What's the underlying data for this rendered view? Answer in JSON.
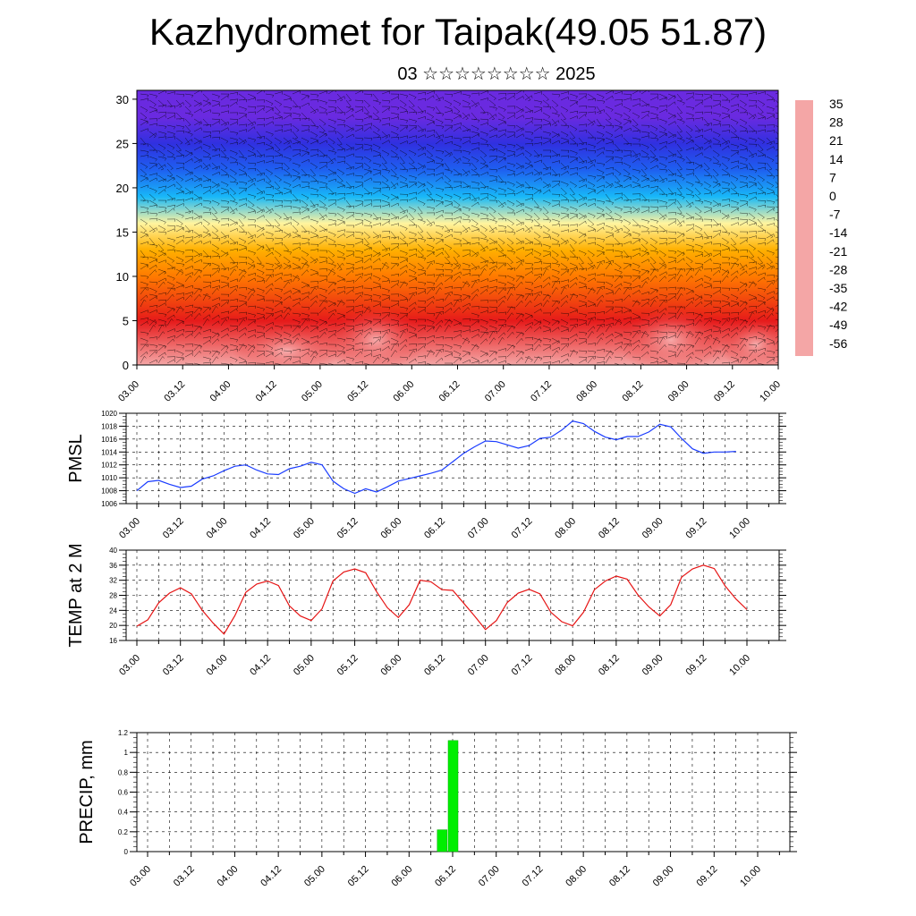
{
  "header": {
    "title": "Kazhydromet for Taipak(49.05 51.87)",
    "subtitle": "03 ☆☆☆☆☆☆☆☆ 2025"
  },
  "chart_data": [
    {
      "type": "heatmap",
      "title": "",
      "xlabel": "",
      "ylabel": "",
      "x_ticks": [
        "03.00",
        "03.12",
        "04.00",
        "04.12",
        "05.00",
        "05.12",
        "06.00",
        "06.12",
        "07.00",
        "07.12",
        "08.00",
        "08.12",
        "09.00",
        "09.12",
        "10.00"
      ],
      "y_ticks": [
        0,
        5,
        10,
        15,
        20,
        25,
        30
      ],
      "ylim": [
        0,
        31
      ],
      "colorbar_ticks": [
        35,
        28,
        21,
        14,
        7,
        0,
        -7,
        -14,
        -21,
        -28,
        -35,
        -42,
        -49,
        -56
      ],
      "colorbar_colors": [
        "#f4a6a6",
        "#e61a1a",
        "#ff3c00",
        "#ff7a00",
        "#ffb000",
        "#ffe070",
        "#fff4a0",
        "#a8e8ff",
        "#18b8f8",
        "#1f8ae6",
        "#2040ee",
        "#3030e0",
        "#5020e0",
        "#8030e0"
      ],
      "overlay": "wind barbs",
      "level_temperature": [
        {
          "level": 0,
          "value": 30
        },
        {
          "level": 5,
          "value": 22
        },
        {
          "level": 10,
          "value": 8
        },
        {
          "level": 13,
          "value": 0
        },
        {
          "level": 16,
          "value": -10
        },
        {
          "level": 19,
          "value": -22
        },
        {
          "level": 22,
          "value": -38
        },
        {
          "level": 25,
          "value": -50
        },
        {
          "level": 28,
          "value": -58
        },
        {
          "level": 31,
          "value": -60
        }
      ]
    },
    {
      "type": "line",
      "ylabel": "PMSL",
      "ylim": [
        1006,
        1020
      ],
      "y_ticks": [
        1006,
        1008,
        1010,
        1012,
        1014,
        1016,
        1018,
        1020
      ],
      "x_ticks": [
        "03.00",
        "03.12",
        "04.00",
        "04.12",
        "05.00",
        "05.12",
        "06.00",
        "06.12",
        "07.00",
        "07.12",
        "08.00",
        "08.12",
        "09.00",
        "09.12",
        "10.00"
      ],
      "x_start": 0,
      "x_step": 3,
      "color": "#1a3cff",
      "values": [
        1008.0,
        1009.4,
        1009.6,
        1009.0,
        1008.5,
        1008.7,
        1009.8,
        1010.3,
        1011.1,
        1011.8,
        1012.0,
        1011.2,
        1010.6,
        1010.5,
        1011.4,
        1011.8,
        1012.4,
        1012.0,
        1009.5,
        1008.3,
        1007.6,
        1008.3,
        1007.8,
        1008.6,
        1009.5,
        1009.9,
        1010.3,
        1010.7,
        1011.2,
        1012.5,
        1013.8,
        1014.8,
        1015.7,
        1015.6,
        1015.1,
        1014.6,
        1015.0,
        1016.1,
        1016.3,
        1017.4,
        1018.8,
        1018.4,
        1017.2,
        1016.3,
        1015.9,
        1016.4,
        1016.4,
        1017.1,
        1018.3,
        1017.9,
        1016.1,
        1014.5,
        1013.8,
        1014.0,
        1014.0,
        1014.1
      ]
    },
    {
      "type": "line",
      "ylabel": "TEMP at 2 M",
      "ylim": [
        16,
        40
      ],
      "y_ticks": [
        16,
        20,
        24,
        28,
        32,
        36,
        40
      ],
      "x_ticks": [
        "03.00",
        "03.12",
        "04.00",
        "04.12",
        "05.00",
        "05.12",
        "06.00",
        "06.12",
        "07.00",
        "07.12",
        "08.00",
        "08.12",
        "09.00",
        "09.12",
        "10.00"
      ],
      "x_start": 0,
      "x_step": 3,
      "color": "#e61414",
      "values": [
        19.8,
        21.5,
        26.0,
        28.6,
        30.0,
        28.4,
        24.0,
        20.6,
        17.7,
        22.6,
        28.8,
        31.0,
        31.8,
        30.6,
        25.2,
        22.5,
        21.3,
        24.4,
        31.8,
        34.2,
        35.0,
        34.0,
        29.0,
        24.7,
        22.1,
        25.5,
        32.0,
        31.6,
        29.5,
        29.3,
        25.9,
        22.5,
        18.9,
        21.3,
        26.1,
        28.6,
        29.6,
        28.4,
        23.5,
        21.0,
        19.9,
        23.5,
        29.5,
        31.8,
        33.1,
        32.3,
        28.1,
        24.9,
        22.5,
        25.5,
        32.8,
        35.0,
        36.0,
        35.1,
        30.5,
        27.0,
        24.2
      ]
    },
    {
      "type": "bar",
      "ylabel": "PRECIP, mm",
      "ylim": [
        0,
        1.2
      ],
      "y_ticks": [
        0.0,
        0.2,
        0.4,
        0.6,
        0.8,
        1.0,
        1.2
      ],
      "x_ticks": [
        "03.00",
        "03.12",
        "04.00",
        "04.12",
        "05.00",
        "05.12",
        "06.00",
        "06.12",
        "07.00",
        "07.12",
        "08.00",
        "08.12",
        "09.00",
        "09.12",
        "10.00"
      ],
      "color": "#00ee00",
      "bars": [
        {
          "x": 81,
          "value": 0.22
        },
        {
          "x": 84,
          "value": 1.12
        }
      ]
    }
  ]
}
